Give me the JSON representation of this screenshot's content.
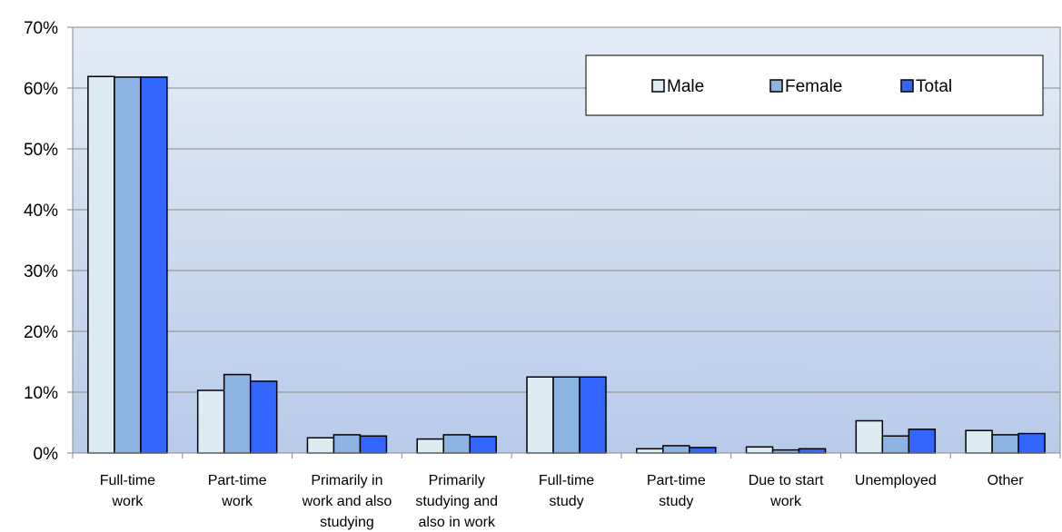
{
  "chart_data": {
    "type": "bar",
    "categories": [
      [
        "Full-time",
        "work"
      ],
      [
        "Part-time",
        "work"
      ],
      [
        "Primarily in",
        "work and also",
        "studying"
      ],
      [
        "Primarily",
        "studying and",
        "also in work"
      ],
      [
        "Full-time",
        "study"
      ],
      [
        "Part-time",
        "study"
      ],
      [
        "Due to start",
        "work"
      ],
      [
        "Unemployed"
      ],
      [
        "Other"
      ]
    ],
    "series": [
      {
        "name": "Male",
        "color": "#dcecf2",
        "values": [
          61.9,
          10.3,
          2.5,
          2.3,
          12.5,
          0.7,
          1.0,
          5.3,
          3.7
        ]
      },
      {
        "name": "Female",
        "color": "#8db3e2",
        "values": [
          61.8,
          12.9,
          3.0,
          3.0,
          12.5,
          1.2,
          0.5,
          2.8,
          3.0
        ]
      },
      {
        "name": "Total",
        "color": "#3366ff",
        "values": [
          61.8,
          11.8,
          2.8,
          2.7,
          12.5,
          0.9,
          0.7,
          3.9,
          3.2
        ]
      }
    ],
    "ylim": [
      0,
      70
    ],
    "ytick_labels": [
      "0%",
      "10%",
      "20%",
      "30%",
      "40%",
      "50%",
      "60%",
      "70%"
    ],
    "grid": true,
    "legend_position": "top-right"
  }
}
